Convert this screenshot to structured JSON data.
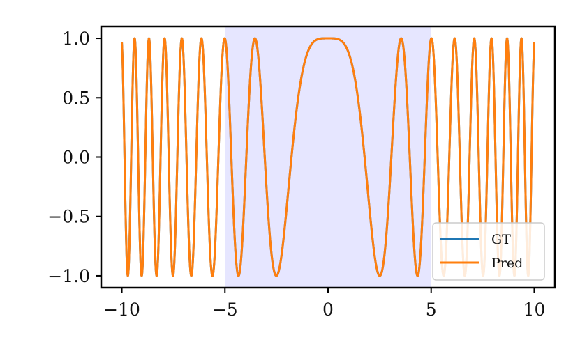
{
  "chart_data": {
    "type": "line",
    "title": "",
    "xlabel": "",
    "ylabel": "",
    "xlim": [
      -11,
      11
    ],
    "ylim": [
      -1.1,
      1.1
    ],
    "xticks": [
      -10,
      -5,
      0,
      5,
      10
    ],
    "xtick_labels": [
      "−10",
      "−5",
      "0",
      "5",
      "10"
    ],
    "yticks": [
      -1.0,
      -0.5,
      0.0,
      0.5,
      1.0
    ],
    "ytick_labels": [
      "−1.0",
      "−0.5",
      "0.0",
      "0.5",
      "1.0"
    ],
    "grid": false,
    "legend_placement": "lower-right",
    "shaded_region": {
      "x": [
        -5,
        5
      ],
      "color": "#e6e6ff"
    },
    "function": "cos(x^2 / 2)",
    "x_range": [
      -10,
      10
    ],
    "series": [
      {
        "name": "GT",
        "color": "#1f77b4"
      },
      {
        "name": "Pred",
        "color": "#ff7f0e"
      }
    ]
  }
}
